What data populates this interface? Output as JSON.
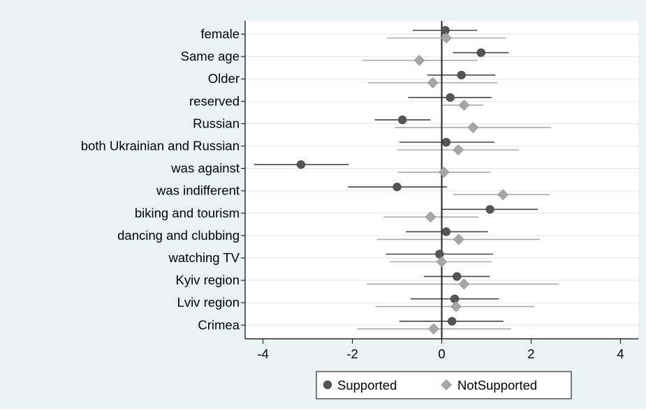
{
  "chart_data": {
    "type": "scatter",
    "orientation": "horizontal",
    "categories": [
      "female",
      "Same age",
      "Older",
      "reserved",
      "Russian",
      "both Ukrainian and Russian",
      "was against",
      "was indifferent",
      "biking and tourism",
      "dancing and clubbing",
      "watching TV",
      "Kyiv region",
      "Lviv region",
      "Crimea"
    ],
    "xlim": [
      -4.4,
      4.4
    ],
    "xticks": [
      -4,
      -2,
      0,
      2,
      4
    ],
    "xtick_labels": [
      "-4",
      "-2",
      "0",
      "2",
      "4"
    ],
    "reference_line": 0,
    "grid": "horizontal",
    "legend_position": "bottom",
    "series": [
      {
        "name": "Supported",
        "marker": "circle",
        "color": "#555555",
        "ci_color": "#444444",
        "values": [
          0.08,
          0.88,
          0.44,
          0.19,
          -0.88,
          0.1,
          -3.15,
          -1.0,
          1.08,
          0.1,
          -0.05,
          0.34,
          0.29,
          0.23
        ],
        "ci_low": [
          -0.65,
          0.25,
          -0.32,
          -0.75,
          -1.5,
          -0.95,
          -4.2,
          -2.1,
          0.0,
          -0.8,
          -1.25,
          -0.4,
          -0.7,
          -0.95
        ],
        "ci_high": [
          0.8,
          1.5,
          1.2,
          1.12,
          -0.25,
          1.18,
          -2.08,
          0.12,
          2.15,
          1.03,
          1.15,
          1.08,
          1.28,
          1.38
        ]
      },
      {
        "name": "NotSupported",
        "marker": "diamond",
        "color": "#a6a6a6",
        "ci_color": "#aaaaaa",
        "values": [
          0.1,
          -0.5,
          -0.2,
          0.5,
          0.7,
          0.37,
          0.05,
          1.37,
          -0.25,
          0.38,
          0.0,
          0.5,
          0.32,
          -0.18
        ],
        "ci_low": [
          -1.22,
          -1.78,
          -1.65,
          0.03,
          -1.05,
          -1.0,
          -0.98,
          0.25,
          -1.3,
          -1.45,
          -1.15,
          -1.68,
          -1.48,
          -1.9
        ],
        "ci_high": [
          1.43,
          0.8,
          1.25,
          0.93,
          2.45,
          1.73,
          1.1,
          2.42,
          0.82,
          2.2,
          1.12,
          2.63,
          2.07,
          1.55
        ]
      }
    ]
  },
  "legend": {
    "items": [
      {
        "label": "Supported",
        "marker": "circle",
        "color": "#555555"
      },
      {
        "label": "NotSupported",
        "marker": "diamond",
        "color": "#a6a6a6"
      }
    ]
  },
  "colors": {
    "frame_background": "#eaf2f3",
    "plot_background": "#ffffff",
    "grid": "#e3ecec",
    "axis": "#000000",
    "reference_line": "#222222"
  }
}
